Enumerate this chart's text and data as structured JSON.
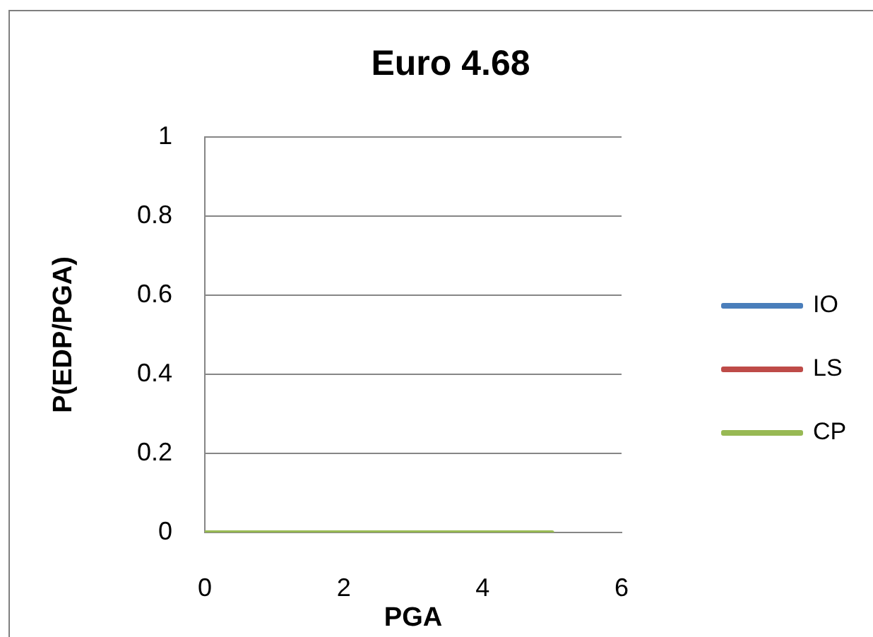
{
  "chart_data": {
    "type": "line",
    "title": "Euro 4.68",
    "xlabel": "PGA",
    "ylabel": "P(EDP/PGA)",
    "x": [
      0,
      5
    ],
    "series": [
      {
        "name": "IO",
        "color": "#4a7ebb",
        "values": [
          null,
          null
        ]
      },
      {
        "name": "LS",
        "color": "#be4b48",
        "values": [
          null,
          null
        ]
      },
      {
        "name": "CP",
        "color": "#98b954",
        "values": [
          0,
          0
        ]
      }
    ],
    "xlim": [
      0,
      6
    ],
    "xticks": [
      0,
      2,
      4,
      6
    ],
    "ylim": [
      0,
      1
    ],
    "yticks": [
      0,
      0.2,
      0.4,
      0.6,
      0.8,
      1
    ],
    "grid": "y",
    "legend": "right",
    "marker": "none",
    "line_style": "solid"
  }
}
